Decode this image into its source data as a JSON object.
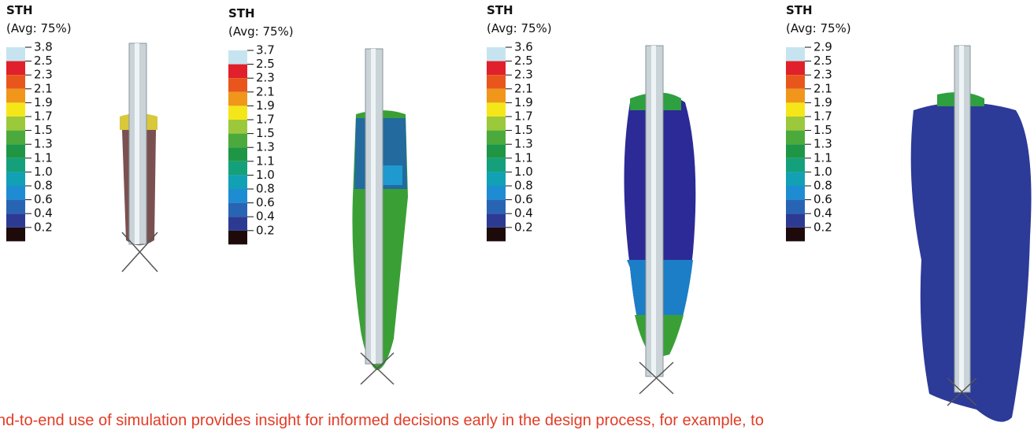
{
  "legend_colors": [
    "#c6e4ef",
    "#e0202a",
    "#e8561c",
    "#f0961a",
    "#f5e61a",
    "#9cc83c",
    "#4caa3c",
    "#1e9646",
    "#14a07a",
    "#12a0b4",
    "#1e8cd2",
    "#2864b4",
    "#2c3a94",
    "#1e0a0a"
  ],
  "panels": [
    {
      "title": "STH",
      "subtitle": "(Avg: 75%)",
      "labels": [
        "3.8",
        "2.5",
        "2.3",
        "2.1",
        "1.9",
        "1.7",
        "1.5",
        "1.3",
        "1.1",
        "1.0",
        "0.8",
        "0.6",
        "0.4",
        "0.2"
      ]
    },
    {
      "title": "STH",
      "subtitle": "(Avg: 75%)",
      "labels": [
        "3.7",
        "2.5",
        "2.3",
        "2.1",
        "1.9",
        "1.7",
        "1.5",
        "1.3",
        "1.1",
        "1.0",
        "0.8",
        "0.6",
        "0.4",
        "0.2"
      ]
    },
    {
      "title": "STH",
      "subtitle": "(Avg: 75%)",
      "labels": [
        "3.6",
        "2.5",
        "2.3",
        "2.1",
        "1.9",
        "1.7",
        "1.5",
        "1.3",
        "1.1",
        "1.0",
        "0.8",
        "0.6",
        "0.4",
        "0.2"
      ]
    },
    {
      "title": "STH",
      "subtitle": "(Avg: 75%)",
      "labels": [
        "2.9",
        "2.5",
        "2.3",
        "2.1",
        "1.9",
        "1.7",
        "1.5",
        "1.3",
        "1.1",
        "1.0",
        "0.8",
        "0.6",
        "0.4",
        "0.2"
      ]
    }
  ],
  "caption": "nd-to-end use of simulation provides insight for informed decisions early in the design process, for example, to"
}
